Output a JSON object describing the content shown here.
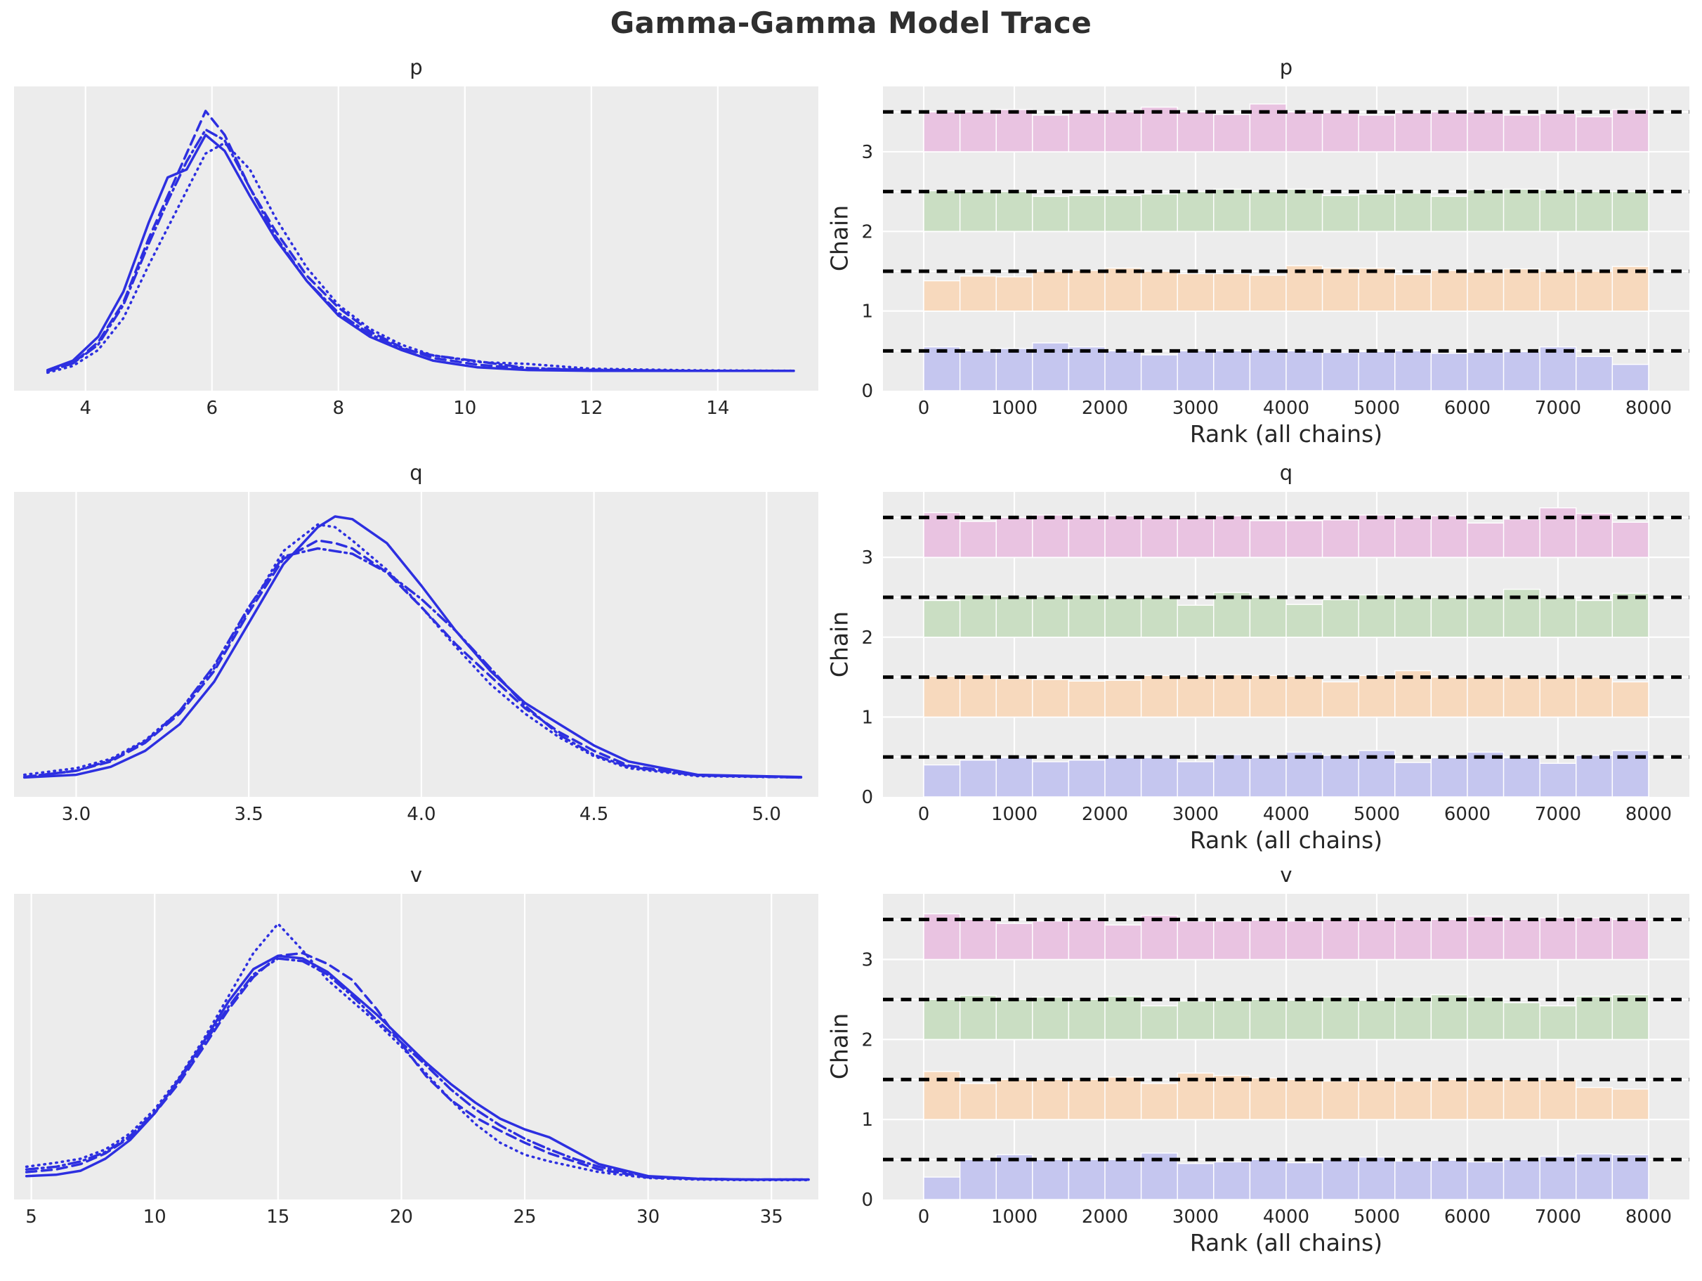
{
  "title": "Gamma-Gamma Model Trace",
  "colors": {
    "kde_line": "#2d2fe0",
    "ref_line": "#000000",
    "axes_bg": "#ececec",
    "grid": "#ffffff",
    "text": "#262626",
    "chain0": "#c5c6ef",
    "chain1": "#f7d9bd",
    "chain2": "#cadec3",
    "chain3": "#e9c3e1"
  },
  "chart_data": [
    {
      "type": "line",
      "kind": "kde",
      "param": "p",
      "title": "p",
      "xlim": [
        2.87,
        15.59
      ],
      "x_ticks": {
        "values": [
          4,
          6,
          8,
          10,
          12,
          14
        ],
        "labels": [
          "4",
          "6",
          "8",
          "10",
          "12",
          "14"
        ]
      },
      "x": [
        3.4,
        3.8,
        4.2,
        4.6,
        5.0,
        5.3,
        5.6,
        5.9,
        6.2,
        6.6,
        7.0,
        7.5,
        8.0,
        8.5,
        9.0,
        9.5,
        10.2,
        11.0,
        12.0,
        13.5,
        15.2
      ],
      "series": [
        {
          "name": "chain 0",
          "linestyle": "solid",
          "y": [
            0.025,
            0.06,
            0.15,
            0.32,
            0.58,
            0.75,
            0.78,
            0.91,
            0.85,
            0.68,
            0.52,
            0.36,
            0.23,
            0.15,
            0.1,
            0.06,
            0.035,
            0.025,
            0.022,
            0.022,
            0.022
          ]
        },
        {
          "name": "chain 1",
          "linestyle": "dotted",
          "y": [
            0.015,
            0.04,
            0.1,
            0.22,
            0.42,
            0.56,
            0.7,
            0.84,
            0.88,
            0.78,
            0.6,
            0.41,
            0.27,
            0.18,
            0.12,
            0.08,
            0.055,
            0.048,
            0.03,
            0.024,
            0.022
          ]
        },
        {
          "name": "chain 2",
          "linestyle": "dashed",
          "y": [
            0.02,
            0.05,
            0.13,
            0.28,
            0.52,
            0.68,
            0.84,
            1.0,
            0.91,
            0.71,
            0.55,
            0.38,
            0.26,
            0.17,
            0.11,
            0.07,
            0.045,
            0.03,
            0.025,
            0.022,
            0.022
          ]
        },
        {
          "name": "chain 3",
          "linestyle": "dashdot",
          "y": [
            0.02,
            0.05,
            0.12,
            0.27,
            0.5,
            0.66,
            0.81,
            0.93,
            0.89,
            0.71,
            0.53,
            0.36,
            0.24,
            0.16,
            0.105,
            0.08,
            0.058,
            0.032,
            0.026,
            0.022,
            0.022
          ]
        }
      ]
    },
    {
      "type": "bar",
      "kind": "rank",
      "param": "p",
      "title": "p",
      "xlabel": "Rank (all chains)",
      "ylabel": "Chain",
      "xlim": [
        -450,
        8450
      ],
      "ylim": [
        0,
        3.82
      ],
      "bin_size": 400,
      "ref_offset": 0.5,
      "x_ticks": {
        "values": [
          0,
          1000,
          2000,
          3000,
          4000,
          5000,
          6000,
          7000,
          8000
        ],
        "labels": [
          "0",
          "1000",
          "2000",
          "3000",
          "4000",
          "5000",
          "6000",
          "7000",
          "8000"
        ]
      },
      "y_ticks": {
        "values": [
          0,
          1,
          2,
          3
        ],
        "labels": [
          "0",
          "1",
          "2",
          "3"
        ]
      },
      "grid_y": [
        0.5,
        1,
        1.5,
        2,
        2.5,
        3,
        3.5
      ],
      "chains": [
        {
          "chain": 0,
          "color": "#c5c6ef",
          "values": [
            0.55,
            0.5,
            0.53,
            0.6,
            0.55,
            0.5,
            0.45,
            0.5,
            0.5,
            0.51,
            0.5,
            0.48,
            0.49,
            0.5,
            0.47,
            0.48,
            0.49,
            0.55,
            0.43,
            0.33
          ]
        },
        {
          "chain": 1,
          "color": "#f7d9bd",
          "values": [
            0.38,
            0.44,
            0.43,
            0.5,
            0.51,
            0.54,
            0.5,
            0.47,
            0.47,
            0.45,
            0.57,
            0.54,
            0.54,
            0.46,
            0.51,
            0.49,
            0.53,
            0.5,
            0.5,
            0.56
          ]
        },
        {
          "chain": 2,
          "color": "#cadec3",
          "values": [
            0.51,
            0.5,
            0.5,
            0.44,
            0.45,
            0.45,
            0.47,
            0.5,
            0.53,
            0.5,
            0.53,
            0.45,
            0.47,
            0.48,
            0.44,
            0.52,
            0.53,
            0.52,
            0.5,
            0.5
          ]
        },
        {
          "chain": 3,
          "color": "#e9c3e1",
          "values": [
            0.5,
            0.5,
            0.53,
            0.46,
            0.49,
            0.5,
            0.56,
            0.5,
            0.47,
            0.6,
            0.5,
            0.49,
            0.46,
            0.49,
            0.5,
            0.5,
            0.46,
            0.48,
            0.44,
            0.53
          ]
        }
      ]
    },
    {
      "type": "line",
      "kind": "kde",
      "param": "q",
      "title": "q",
      "xlim": [
        2.82,
        5.15
      ],
      "x_ticks": {
        "values": [
          3.0,
          3.5,
          4.0,
          4.5,
          5.0
        ],
        "labels": [
          "3.0",
          "3.5",
          "4.0",
          "4.5",
          "5.0"
        ]
      },
      "x": [
        2.85,
        3.0,
        3.1,
        3.2,
        3.3,
        3.4,
        3.5,
        3.6,
        3.7,
        3.75,
        3.8,
        3.9,
        4.0,
        4.1,
        4.2,
        4.3,
        4.4,
        4.5,
        4.6,
        4.8,
        5.1
      ],
      "series": [
        {
          "name": "chain 0",
          "linestyle": "solid",
          "y": [
            0.02,
            0.03,
            0.06,
            0.12,
            0.22,
            0.38,
            0.6,
            0.82,
            0.96,
            1.0,
            0.99,
            0.9,
            0.74,
            0.57,
            0.42,
            0.3,
            0.22,
            0.14,
            0.08,
            0.03,
            0.022
          ]
        },
        {
          "name": "chain 1",
          "linestyle": "dotted",
          "y": [
            0.03,
            0.055,
            0.09,
            0.16,
            0.27,
            0.43,
            0.65,
            0.87,
            0.97,
            0.96,
            0.91,
            0.8,
            0.66,
            0.51,
            0.37,
            0.26,
            0.17,
            0.1,
            0.055,
            0.025,
            0.02
          ]
        },
        {
          "name": "chain 2",
          "linestyle": "dashed",
          "y": [
            0.022,
            0.045,
            0.08,
            0.15,
            0.26,
            0.42,
            0.64,
            0.84,
            0.91,
            0.9,
            0.88,
            0.79,
            0.66,
            0.52,
            0.4,
            0.28,
            0.19,
            0.12,
            0.065,
            0.028,
            0.02
          ]
        },
        {
          "name": "chain 3",
          "linestyle": "dashdot",
          "y": [
            0.022,
            0.045,
            0.085,
            0.155,
            0.27,
            0.44,
            0.66,
            0.85,
            0.88,
            0.87,
            0.86,
            0.79,
            0.69,
            0.57,
            0.43,
            0.29,
            0.18,
            0.105,
            0.06,
            0.028,
            0.02
          ]
        }
      ]
    },
    {
      "type": "bar",
      "kind": "rank",
      "param": "q",
      "title": "q",
      "xlabel": "Rank (all chains)",
      "ylabel": "Chain",
      "xlim": [
        -450,
        8450
      ],
      "ylim": [
        0,
        3.82
      ],
      "bin_size": 400,
      "ref_offset": 0.5,
      "x_ticks": {
        "values": [
          0,
          1000,
          2000,
          3000,
          4000,
          5000,
          6000,
          7000,
          8000
        ],
        "labels": [
          "0",
          "1000",
          "2000",
          "3000",
          "4000",
          "5000",
          "6000",
          "7000",
          "8000"
        ]
      },
      "y_ticks": {
        "values": [
          0,
          1,
          2,
          3
        ],
        "labels": [
          "0",
          "1",
          "2",
          "3"
        ]
      },
      "grid_y": [
        0.5,
        1,
        1.5,
        2,
        2.5,
        3,
        3.5
      ],
      "chains": [
        {
          "chain": 0,
          "color": "#c5c6ef",
          "values": [
            0.4,
            0.46,
            0.49,
            0.44,
            0.46,
            0.49,
            0.49,
            0.44,
            0.53,
            0.49,
            0.56,
            0.52,
            0.58,
            0.43,
            0.49,
            0.56,
            0.49,
            0.42,
            0.52,
            0.58
          ]
        },
        {
          "chain": 1,
          "color": "#f7d9bd",
          "values": [
            0.51,
            0.53,
            0.48,
            0.47,
            0.45,
            0.46,
            0.52,
            0.51,
            0.53,
            0.52,
            0.51,
            0.44,
            0.52,
            0.58,
            0.5,
            0.5,
            0.5,
            0.5,
            0.5,
            0.44
          ]
        },
        {
          "chain": 2,
          "color": "#cadec3",
          "values": [
            0.46,
            0.53,
            0.51,
            0.51,
            0.53,
            0.49,
            0.5,
            0.4,
            0.56,
            0.5,
            0.41,
            0.47,
            0.53,
            0.5,
            0.5,
            0.5,
            0.6,
            0.5,
            0.46,
            0.55
          ]
        },
        {
          "chain": 3,
          "color": "#e9c3e1",
          "values": [
            0.56,
            0.45,
            0.5,
            0.53,
            0.5,
            0.52,
            0.5,
            0.5,
            0.52,
            0.46,
            0.46,
            0.47,
            0.53,
            0.5,
            0.52,
            0.43,
            0.48,
            0.62,
            0.55,
            0.44
          ]
        }
      ]
    },
    {
      "type": "line",
      "kind": "kde",
      "param": "v",
      "title": "v",
      "xlim": [
        4.3,
        36.9
      ],
      "x_ticks": {
        "values": [
          5,
          10,
          15,
          20,
          25,
          30,
          35
        ],
        "labels": [
          "5",
          "10",
          "15",
          "20",
          "25",
          "30",
          "35"
        ]
      },
      "x": [
        4.8,
        6,
        7,
        8,
        9,
        10,
        11,
        12,
        13,
        14,
        15,
        16,
        17,
        18,
        19,
        20,
        21,
        22,
        23,
        24,
        25,
        26,
        27,
        28,
        30,
        32,
        34,
        36.5
      ],
      "series": [
        {
          "name": "chain 0",
          "linestyle": "solid",
          "y": [
            0.035,
            0.04,
            0.055,
            0.1,
            0.17,
            0.27,
            0.4,
            0.54,
            0.69,
            0.81,
            0.86,
            0.85,
            0.8,
            0.72,
            0.64,
            0.55,
            0.46,
            0.38,
            0.31,
            0.25,
            0.21,
            0.18,
            0.13,
            0.08,
            0.035,
            0.025,
            0.022,
            0.022
          ]
        },
        {
          "name": "chain 1",
          "linestyle": "dotted",
          "y": [
            0.07,
            0.085,
            0.1,
            0.135,
            0.195,
            0.285,
            0.405,
            0.55,
            0.71,
            0.87,
            0.98,
            0.88,
            0.77,
            0.69,
            0.61,
            0.52,
            0.42,
            0.32,
            0.23,
            0.16,
            0.115,
            0.09,
            0.07,
            0.05,
            0.028,
            0.022,
            0.02,
            0.02
          ]
        },
        {
          "name": "chain 2",
          "linestyle": "dashed",
          "y": [
            0.05,
            0.06,
            0.08,
            0.12,
            0.18,
            0.27,
            0.385,
            0.52,
            0.66,
            0.78,
            0.86,
            0.87,
            0.83,
            0.77,
            0.66,
            0.53,
            0.41,
            0.32,
            0.255,
            0.205,
            0.16,
            0.12,
            0.09,
            0.06,
            0.03,
            0.024,
            0.022,
            0.022
          ]
        },
        {
          "name": "chain 3",
          "linestyle": "dashdot",
          "y": [
            0.06,
            0.07,
            0.09,
            0.125,
            0.185,
            0.275,
            0.395,
            0.53,
            0.67,
            0.79,
            0.85,
            0.84,
            0.79,
            0.71,
            0.62,
            0.535,
            0.45,
            0.36,
            0.285,
            0.225,
            0.175,
            0.135,
            0.1,
            0.07,
            0.034,
            0.025,
            0.022,
            0.022
          ]
        }
      ]
    },
    {
      "type": "bar",
      "kind": "rank",
      "param": "v",
      "title": "v",
      "xlabel": "Rank (all chains)",
      "ylabel": "Chain",
      "xlim": [
        -450,
        8450
      ],
      "ylim": [
        0,
        3.82
      ],
      "bin_size": 400,
      "ref_offset": 0.5,
      "x_ticks": {
        "values": [
          0,
          1000,
          2000,
          3000,
          4000,
          5000,
          6000,
          7000,
          8000
        ],
        "labels": [
          "0",
          "1000",
          "2000",
          "3000",
          "4000",
          "5000",
          "6000",
          "7000",
          "8000"
        ]
      },
      "y_ticks": {
        "values": [
          0,
          1,
          2,
          3
        ],
        "labels": [
          "0",
          "1",
          "2",
          "3"
        ]
      },
      "grid_y": [
        0.5,
        1,
        1.5,
        2,
        2.5,
        3,
        3.5
      ],
      "chains": [
        {
          "chain": 0,
          "color": "#c5c6ef",
          "values": [
            0.28,
            0.5,
            0.56,
            0.5,
            0.5,
            0.5,
            0.58,
            0.45,
            0.47,
            0.5,
            0.46,
            0.5,
            0.53,
            0.48,
            0.49,
            0.47,
            0.5,
            0.54,
            0.57,
            0.56
          ]
        },
        {
          "chain": 1,
          "color": "#f7d9bd",
          "values": [
            0.6,
            0.45,
            0.5,
            0.5,
            0.5,
            0.53,
            0.45,
            0.58,
            0.55,
            0.52,
            0.5,
            0.48,
            0.5,
            0.48,
            0.5,
            0.5,
            0.5,
            0.5,
            0.4,
            0.38
          ]
        },
        {
          "chain": 2,
          "color": "#cadec3",
          "values": [
            0.5,
            0.55,
            0.5,
            0.53,
            0.5,
            0.54,
            0.42,
            0.48,
            0.49,
            0.5,
            0.49,
            0.53,
            0.49,
            0.53,
            0.56,
            0.53,
            0.46,
            0.42,
            0.54,
            0.56
          ]
        },
        {
          "chain": 3,
          "color": "#e9c3e1",
          "values": [
            0.57,
            0.5,
            0.45,
            0.48,
            0.5,
            0.43,
            0.55,
            0.48,
            0.48,
            0.49,
            0.48,
            0.5,
            0.5,
            0.5,
            0.5,
            0.54,
            0.5,
            0.52,
            0.52,
            0.5
          ]
        }
      ]
    }
  ]
}
